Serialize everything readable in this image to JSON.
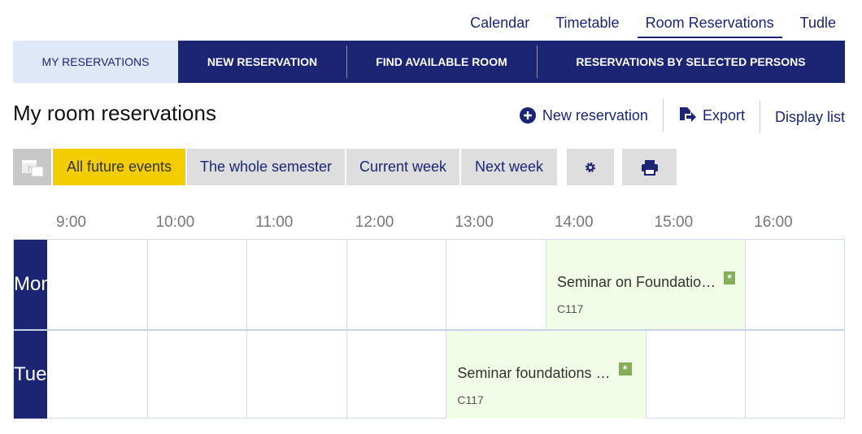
{
  "topnav": [
    "Calendar",
    "Timetable",
    "Room Reservations",
    "Tudle"
  ],
  "topnav_active": 2,
  "tabs": [
    "MY RESERVATIONS",
    "NEW RESERVATION",
    "FIND AVAILABLE ROOM",
    "RESERVATIONS BY SELECTED PERSONS"
  ],
  "title": "My room reservations",
  "actions": {
    "new": "New reservation",
    "export": "Export",
    "display": "Display list"
  },
  "filters": [
    "All future events",
    "The whole semester",
    "Current week",
    "Next week"
  ],
  "colors": {
    "navy": "#1b2574",
    "selected": "#f2cd00",
    "event": "#f1fde6",
    "badge": "#86ad58"
  },
  "hours": [
    "9:00",
    "10:00",
    "11:00",
    "12:00",
    "13:00",
    "14:00",
    "15:00",
    "16:00"
  ],
  "days": [
    {
      "label": "Mon",
      "event": {
        "title": "Seminar on Foundatio…",
        "room": "C117",
        "start": "14:00",
        "end": "16:00",
        "badge": "*"
      }
    },
    {
      "label": "Tue",
      "event": {
        "title": "Seminar foundations …",
        "room": "C117",
        "start": "13:00",
        "end": "15:00",
        "badge": "*"
      }
    }
  ]
}
